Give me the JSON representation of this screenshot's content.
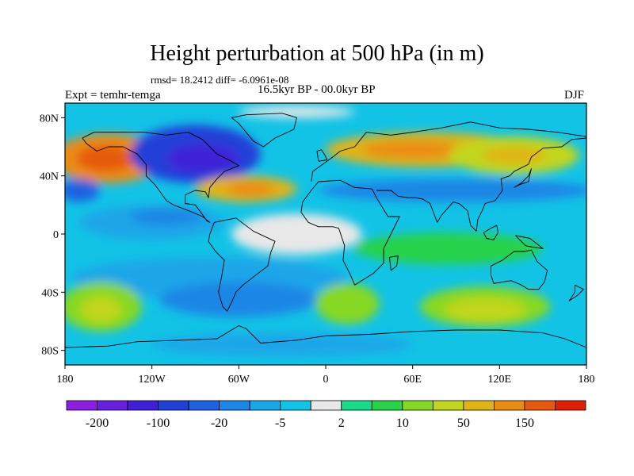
{
  "title": "Height perturbation at 500 hPa (in m)",
  "stats": "rmsd= 18.2412 diff= -6.0961e-08",
  "period": "16.5kyr BP - 00.0kyr BP",
  "experiment": "Expt = temhr-temga",
  "season": "DJF",
  "map": {
    "lat_ticks": [
      {
        "lat": 80,
        "label": "80N"
      },
      {
        "lat": 40,
        "label": "40N"
      },
      {
        "lat": 0,
        "label": "0"
      },
      {
        "lat": -40,
        "label": "40S"
      },
      {
        "lat": -80,
        "label": "80S"
      }
    ],
    "lon_ticks": [
      {
        "lon": -180,
        "label": "180"
      },
      {
        "lon": -120,
        "label": "120W"
      },
      {
        "lon": -60,
        "label": "60W"
      },
      {
        "lon": 0,
        "label": "0"
      },
      {
        "lon": 60,
        "label": "60E"
      },
      {
        "lon": 120,
        "label": "120E"
      },
      {
        "lon": 180,
        "label": "180"
      }
    ]
  },
  "colorbar": {
    "colors": [
      "#8c1fe0",
      "#6a1ee0",
      "#3f20d8",
      "#2040d8",
      "#1f62e0",
      "#1e86e6",
      "#1aa6e8",
      "#12c3e6",
      "#e8e8e8",
      "#16dc8a",
      "#28d24a",
      "#86d822",
      "#c2d61e",
      "#e0b414",
      "#ea8c12",
      "#e65a10",
      "#e01f08"
    ],
    "labels": [
      {
        "after": 1,
        "text": "-200"
      },
      {
        "after": 3,
        "text": "-100"
      },
      {
        "after": 5,
        "text": "-20"
      },
      {
        "after": 7,
        "text": "-5"
      },
      {
        "after": 9,
        "text": "2"
      },
      {
        "after": 11,
        "text": "10"
      },
      {
        "after": 13,
        "text": "50"
      },
      {
        "after": 15,
        "text": "150"
      }
    ]
  },
  "features": [
    {
      "name": "ne-pacific-positive",
      "lon": -150,
      "lat": 52,
      "rx": 38,
      "ry": 17,
      "color": "#ea8c12"
    },
    {
      "name": "ne-pacific-positive-core",
      "lon": -152,
      "lat": 52,
      "rx": 20,
      "ry": 9,
      "color": "#e65a10"
    },
    {
      "name": "north-america-low",
      "lon": -90,
      "lat": 55,
      "rx": 45,
      "ry": 20,
      "color": "#2040d8"
    },
    {
      "name": "north-america-low-core",
      "lon": -85,
      "lat": 52,
      "rx": 25,
      "ry": 10,
      "color": "#3f20d8"
    },
    {
      "name": "central-us-high",
      "lon": -55,
      "lat": 31,
      "rx": 35,
      "ry": 9,
      "color": "#e0b414"
    },
    {
      "name": "central-us-high-core",
      "lon": -52,
      "lat": 31,
      "rx": 17,
      "ry": 5,
      "color": "#ea8c12"
    },
    {
      "name": "eurasia-high",
      "lon": 70,
      "lat": 58,
      "rx": 70,
      "ry": 12,
      "color": "#e0b414"
    },
    {
      "name": "eurasia-high-core",
      "lon": 60,
      "lat": 58,
      "rx": 35,
      "ry": 6,
      "color": "#ea8c12"
    },
    {
      "name": "west-pacific-high",
      "lon": 130,
      "lat": 54,
      "rx": 45,
      "ry": 13,
      "color": "#c2d61e"
    },
    {
      "name": "west-pacific-high-core",
      "lon": 130,
      "lat": 54,
      "rx": 22,
      "ry": 6,
      "color": "#e0b414"
    },
    {
      "name": "subtropical-low-band",
      "lon": 90,
      "lat": 30,
      "rx": 95,
      "ry": 8,
      "color": "#1e86e6"
    },
    {
      "name": "pacific-low-west",
      "lon": -170,
      "lat": 30,
      "rx": 14,
      "ry": 8,
      "color": "#1f62e0"
    },
    {
      "name": "tropical-pacific-low",
      "lon": -120,
      "lat": 8,
      "rx": 50,
      "ry": 12,
      "color": "#1aa6e8"
    },
    {
      "name": "tropical-pacific-low-core",
      "lon": -110,
      "lat": 12,
      "rx": 25,
      "ry": 6,
      "color": "#1e86e6"
    },
    {
      "name": "tropical-atlantic-neutral",
      "lon": -20,
      "lat": 0,
      "rx": 45,
      "ry": 14,
      "color": "#e8e8e8"
    },
    {
      "name": "indian-ocean-positive",
      "lon": 85,
      "lat": -10,
      "rx": 65,
      "ry": 11,
      "color": "#28d24a"
    },
    {
      "name": "southern-low-band",
      "lon": -80,
      "lat": -30,
      "rx": 95,
      "ry": 14,
      "color": "#1aa6e8"
    },
    {
      "name": "southern-low-core",
      "lon": -60,
      "lat": -45,
      "rx": 55,
      "ry": 12,
      "color": "#1e86e6"
    },
    {
      "name": "south-pacific-high",
      "lon": -155,
      "lat": -50,
      "rx": 28,
      "ry": 17,
      "color": "#86d822"
    },
    {
      "name": "south-pacific-high-core",
      "lon": -155,
      "lat": -52,
      "rx": 14,
      "ry": 9,
      "color": "#c2d61e"
    },
    {
      "name": "south-atlantic-high",
      "lon": 15,
      "lat": -48,
      "rx": 22,
      "ry": 14,
      "color": "#86d822"
    },
    {
      "name": "indian-southern-high",
      "lon": 110,
      "lat": -50,
      "rx": 45,
      "ry": 14,
      "color": "#86d822"
    },
    {
      "name": "indian-southern-high-core",
      "lon": 110,
      "lat": -52,
      "rx": 28,
      "ry": 8,
      "color": "#c2d61e"
    },
    {
      "name": "antarctic-low",
      "lon": -30,
      "lat": -76,
      "rx": 90,
      "ry": 8,
      "color": "#1aa6e8"
    },
    {
      "name": "arctic-neutral",
      "lon": -20,
      "lat": 84,
      "rx": 40,
      "ry": 4,
      "color": "#e8e8e8"
    }
  ],
  "coastlines": [
    {
      "name": "north-america-coast",
      "points": [
        [
          -168,
          66
        ],
        [
          -160,
          70
        ],
        [
          -140,
          70
        ],
        [
          -125,
          70
        ],
        [
          -110,
          68
        ],
        [
          -95,
          70
        ],
        [
          -85,
          65
        ],
        [
          -80,
          60
        ],
        [
          -75,
          55
        ],
        [
          -65,
          50
        ],
        [
          -60,
          47
        ],
        [
          -70,
          43
        ],
        [
          -75,
          38
        ],
        [
          -80,
          32
        ],
        [
          -81,
          25
        ],
        [
          -83,
          29
        ],
        [
          -90,
          30
        ],
        [
          -97,
          27
        ],
        [
          -97,
          21
        ],
        [
          -90,
          20
        ],
        [
          -87,
          16
        ],
        [
          -82,
          9
        ],
        [
          -80,
          8
        ],
        [
          -85,
          12
        ],
        [
          -92,
          15
        ],
        [
          -105,
          20
        ],
        [
          -110,
          23
        ],
        [
          -115,
          30
        ],
        [
          -118,
          34
        ],
        [
          -124,
          40
        ],
        [
          -124,
          48
        ],
        [
          -130,
          55
        ],
        [
          -140,
          60
        ],
        [
          -150,
          60
        ],
        [
          -158,
          57
        ],
        [
          -165,
          62
        ],
        [
          -168,
          66
        ]
      ]
    },
    {
      "name": "south-america-coast",
      "points": [
        [
          -77,
          8
        ],
        [
          -62,
          11
        ],
        [
          -50,
          2
        ],
        [
          -35,
          -5
        ],
        [
          -38,
          -13
        ],
        [
          -40,
          -22
        ],
        [
          -48,
          -28
        ],
        [
          -57,
          -35
        ],
        [
          -62,
          -40
        ],
        [
          -65,
          -47
        ],
        [
          -68,
          -53
        ],
        [
          -71,
          -50
        ],
        [
          -74,
          -40
        ],
        [
          -72,
          -30
        ],
        [
          -70,
          -18
        ],
        [
          -76,
          -12
        ],
        [
          -81,
          -5
        ],
        [
          -80,
          0
        ],
        [
          -77,
          8
        ]
      ]
    },
    {
      "name": "africa-coast",
      "points": [
        [
          -17,
          15
        ],
        [
          -16,
          22
        ],
        [
          -10,
          30
        ],
        [
          -5,
          36
        ],
        [
          10,
          37
        ],
        [
          20,
          32
        ],
        [
          32,
          31
        ],
        [
          35,
          25
        ],
        [
          43,
          12
        ],
        [
          51,
          12
        ],
        [
          45,
          0
        ],
        [
          40,
          -10
        ],
        [
          40,
          -20
        ],
        [
          33,
          -27
        ],
        [
          20,
          -35
        ],
        [
          17,
          -28
        ],
        [
          12,
          -18
        ],
        [
          13,
          -8
        ],
        [
          9,
          4
        ],
        [
          5,
          5
        ],
        [
          -5,
          5
        ],
        [
          -12,
          8
        ],
        [
          -17,
          15
        ]
      ]
    },
    {
      "name": "eurasia-coast",
      "points": [
        [
          -10,
          36
        ],
        [
          -9,
          43
        ],
        [
          -2,
          48
        ],
        [
          5,
          53
        ],
        [
          10,
          57
        ],
        [
          20,
          60
        ],
        [
          28,
          70
        ],
        [
          45,
          68
        ],
        [
          60,
          70
        ],
        [
          80,
          73
        ],
        [
          100,
          77
        ],
        [
          120,
          73
        ],
        [
          140,
          72
        ],
        [
          160,
          70
        ],
        [
          180,
          67
        ]
      ]
    },
    {
      "name": "asia-south-coast",
      "points": [
        [
          35,
          30
        ],
        [
          45,
          30
        ],
        [
          50,
          26
        ],
        [
          57,
          25
        ],
        [
          62,
          25
        ],
        [
          67,
          24
        ],
        [
          72,
          21
        ],
        [
          77,
          8
        ],
        [
          80,
          13
        ],
        [
          88,
          22
        ],
        [
          92,
          21
        ],
        [
          98,
          16
        ],
        [
          100,
          6
        ],
        [
          104,
          2
        ],
        [
          105,
          10
        ],
        [
          108,
          16
        ],
        [
          110,
          21
        ],
        [
          117,
          23
        ],
        [
          122,
          30
        ],
        [
          121,
          38
        ],
        [
          127,
          40
        ],
        [
          130,
          43
        ],
        [
          140,
          48
        ],
        [
          142,
          53
        ],
        [
          150,
          59
        ],
        [
          163,
          60
        ],
        [
          170,
          65
        ],
        [
          180,
          66
        ]
      ]
    },
    {
      "name": "australia-coast",
      "points": [
        [
          114,
          -22
        ],
        [
          122,
          -18
        ],
        [
          130,
          -12
        ],
        [
          137,
          -12
        ],
        [
          142,
          -11
        ],
        [
          146,
          -19
        ],
        [
          153,
          -25
        ],
        [
          151,
          -33
        ],
        [
          147,
          -38
        ],
        [
          140,
          -38
        ],
        [
          135,
          -35
        ],
        [
          128,
          -32
        ],
        [
          116,
          -34
        ],
        [
          114,
          -28
        ],
        [
          114,
          -22
        ]
      ]
    },
    {
      "name": "greenland-coast",
      "points": [
        [
          -55,
          82
        ],
        [
          -30,
          83
        ],
        [
          -20,
          80
        ],
        [
          -22,
          72
        ],
        [
          -35,
          66
        ],
        [
          -43,
          60
        ],
        [
          -50,
          64
        ],
        [
          -55,
          70
        ],
        [
          -60,
          76
        ],
        [
          -65,
          80
        ],
        [
          -55,
          82
        ]
      ]
    },
    {
      "name": "antarctica-coast",
      "points": [
        [
          -180,
          -78
        ],
        [
          -150,
          -77
        ],
        [
          -130,
          -74
        ],
        [
          -100,
          -73
        ],
        [
          -75,
          -72
        ],
        [
          -60,
          -63
        ],
        [
          -55,
          -65
        ],
        [
          -45,
          -75
        ],
        [
          -20,
          -73
        ],
        [
          0,
          -70
        ],
        [
          30,
          -69
        ],
        [
          60,
          -67
        ],
        [
          90,
          -66
        ],
        [
          120,
          -66
        ],
        [
          150,
          -68
        ],
        [
          165,
          -72
        ],
        [
          180,
          -78
        ]
      ]
    },
    {
      "name": "borneo-coast",
      "points": [
        [
          109,
          1
        ],
        [
          114,
          4
        ],
        [
          118,
          6
        ],
        [
          119,
          1
        ],
        [
          116,
          -4
        ],
        [
          111,
          -3
        ],
        [
          109,
          1
        ]
      ]
    },
    {
      "name": "new-guinea-coast",
      "points": [
        [
          131,
          -1
        ],
        [
          141,
          -3
        ],
        [
          150,
          -10
        ],
        [
          143,
          -9
        ],
        [
          138,
          -8
        ],
        [
          131,
          -1
        ]
      ]
    },
    {
      "name": "japan-coast",
      "points": [
        [
          130,
          32
        ],
        [
          134,
          34
        ],
        [
          140,
          36
        ],
        [
          141,
          41
        ],
        [
          142,
          45
        ],
        [
          140,
          40
        ],
        [
          135,
          35
        ],
        [
          130,
          32
        ]
      ]
    },
    {
      "name": "madagascar-coast",
      "points": [
        [
          44,
          -16
        ],
        [
          50,
          -15
        ],
        [
          49,
          -22
        ],
        [
          45,
          -25
        ],
        [
          44,
          -16
        ]
      ]
    },
    {
      "name": "new-zealand-coast",
      "points": [
        [
          172,
          -35
        ],
        [
          178,
          -38
        ],
        [
          174,
          -42
        ],
        [
          168,
          -46
        ],
        [
          172,
          -40
        ],
        [
          172,
          -35
        ]
      ]
    },
    {
      "name": "uk-coast",
      "points": [
        [
          -5,
          50
        ],
        [
          1,
          51
        ],
        [
          -1,
          55
        ],
        [
          -3,
          58
        ],
        [
          -6,
          57
        ],
        [
          -5,
          50
        ]
      ]
    }
  ]
}
